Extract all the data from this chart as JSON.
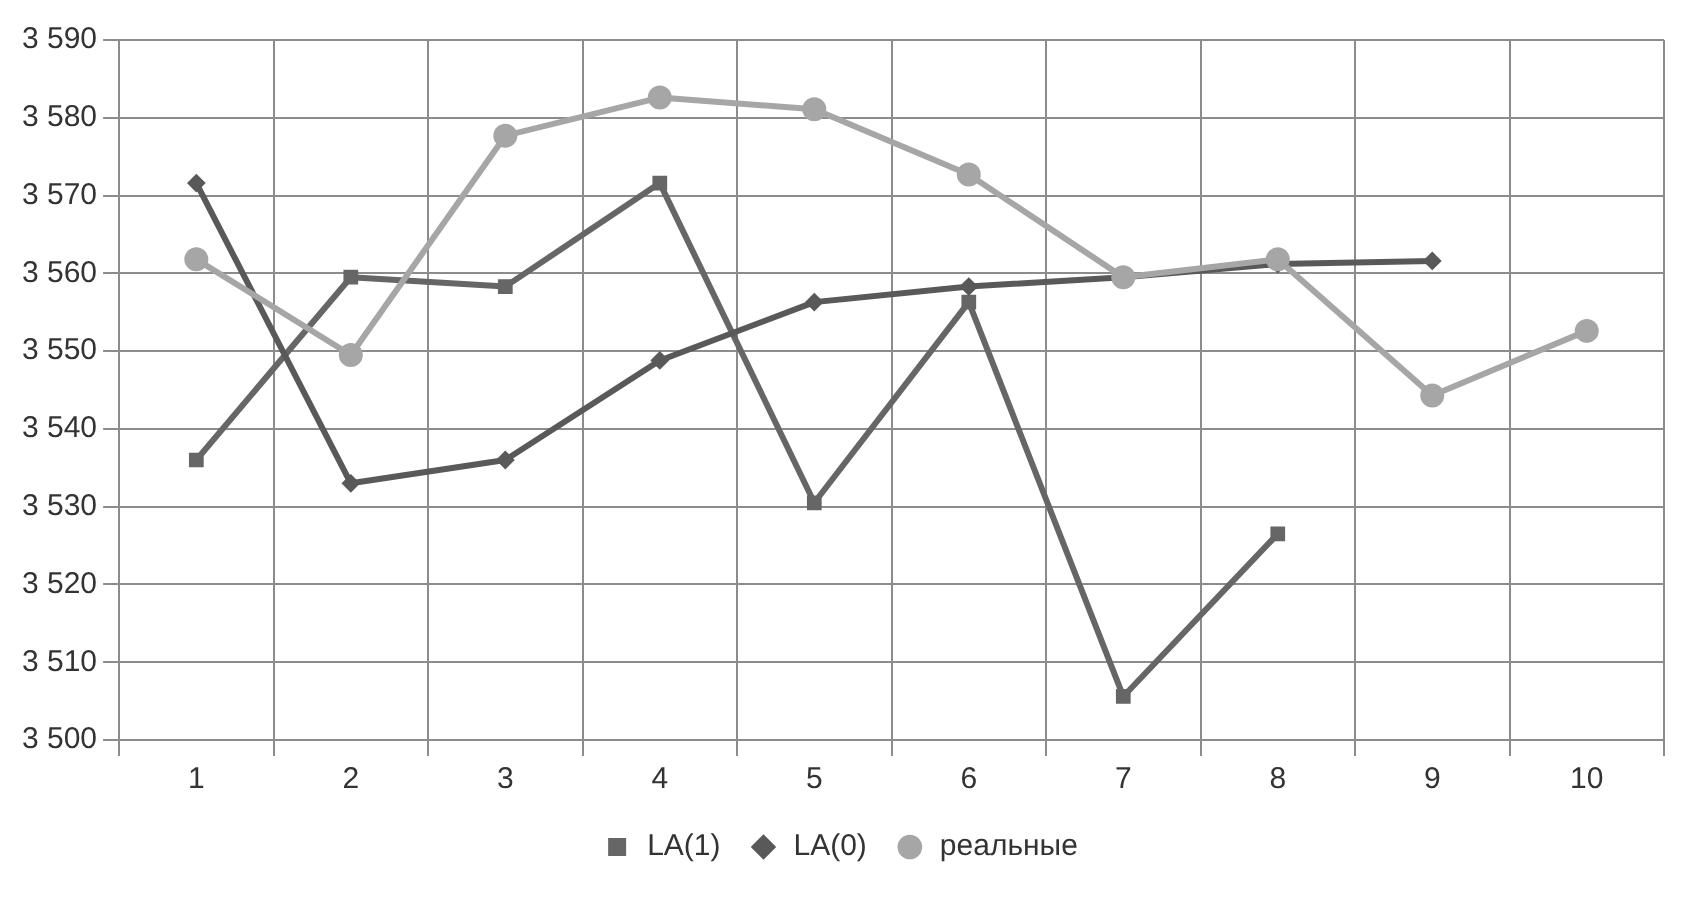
{
  "chart_data": {
    "type": "line",
    "categories": [
      "1",
      "2",
      "3",
      "4",
      "5",
      "6",
      "7",
      "8",
      "9",
      "10"
    ],
    "ylim": [
      3500,
      3590
    ],
    "yticks": [
      {
        "value": 3500,
        "label": "3 500"
      },
      {
        "value": 3510,
        "label": "3 510"
      },
      {
        "value": 3520,
        "label": "3 520"
      },
      {
        "value": 3530,
        "label": "3 530"
      },
      {
        "value": 3540,
        "label": "3 540"
      },
      {
        "value": 3550,
        "label": "3 550"
      },
      {
        "value": 3560,
        "label": "3 560"
      },
      {
        "value": 3570,
        "label": "3 570"
      },
      {
        "value": 3580,
        "label": "3 580"
      },
      {
        "value": 3590,
        "label": "3 590"
      }
    ],
    "grid": true,
    "legend": "bottom",
    "line_style": "solid",
    "series": [
      {
        "name": "LA(1)",
        "color": "#666666",
        "marker": "square",
        "values": [
          3536,
          3559.5,
          3558.3,
          3571.6,
          3530.5,
          3556.3,
          3505.6,
          3526.5,
          null,
          null
        ]
      },
      {
        "name": "LA(0)",
        "color": "#595959",
        "marker": "diamond",
        "values": [
          3571.6,
          3533,
          3536,
          3548.8,
          3556.3,
          3558.3,
          3559.5,
          3561.2,
          3561.6,
          null
        ]
      },
      {
        "name": "реальные",
        "color": "#a6a6a6",
        "marker": "circle",
        "values": [
          3561.8,
          3549.5,
          3577.7,
          3582.6,
          3581.1,
          3572.7,
          3559.5,
          3561.8,
          3544.3,
          3552.6
        ]
      }
    ]
  }
}
